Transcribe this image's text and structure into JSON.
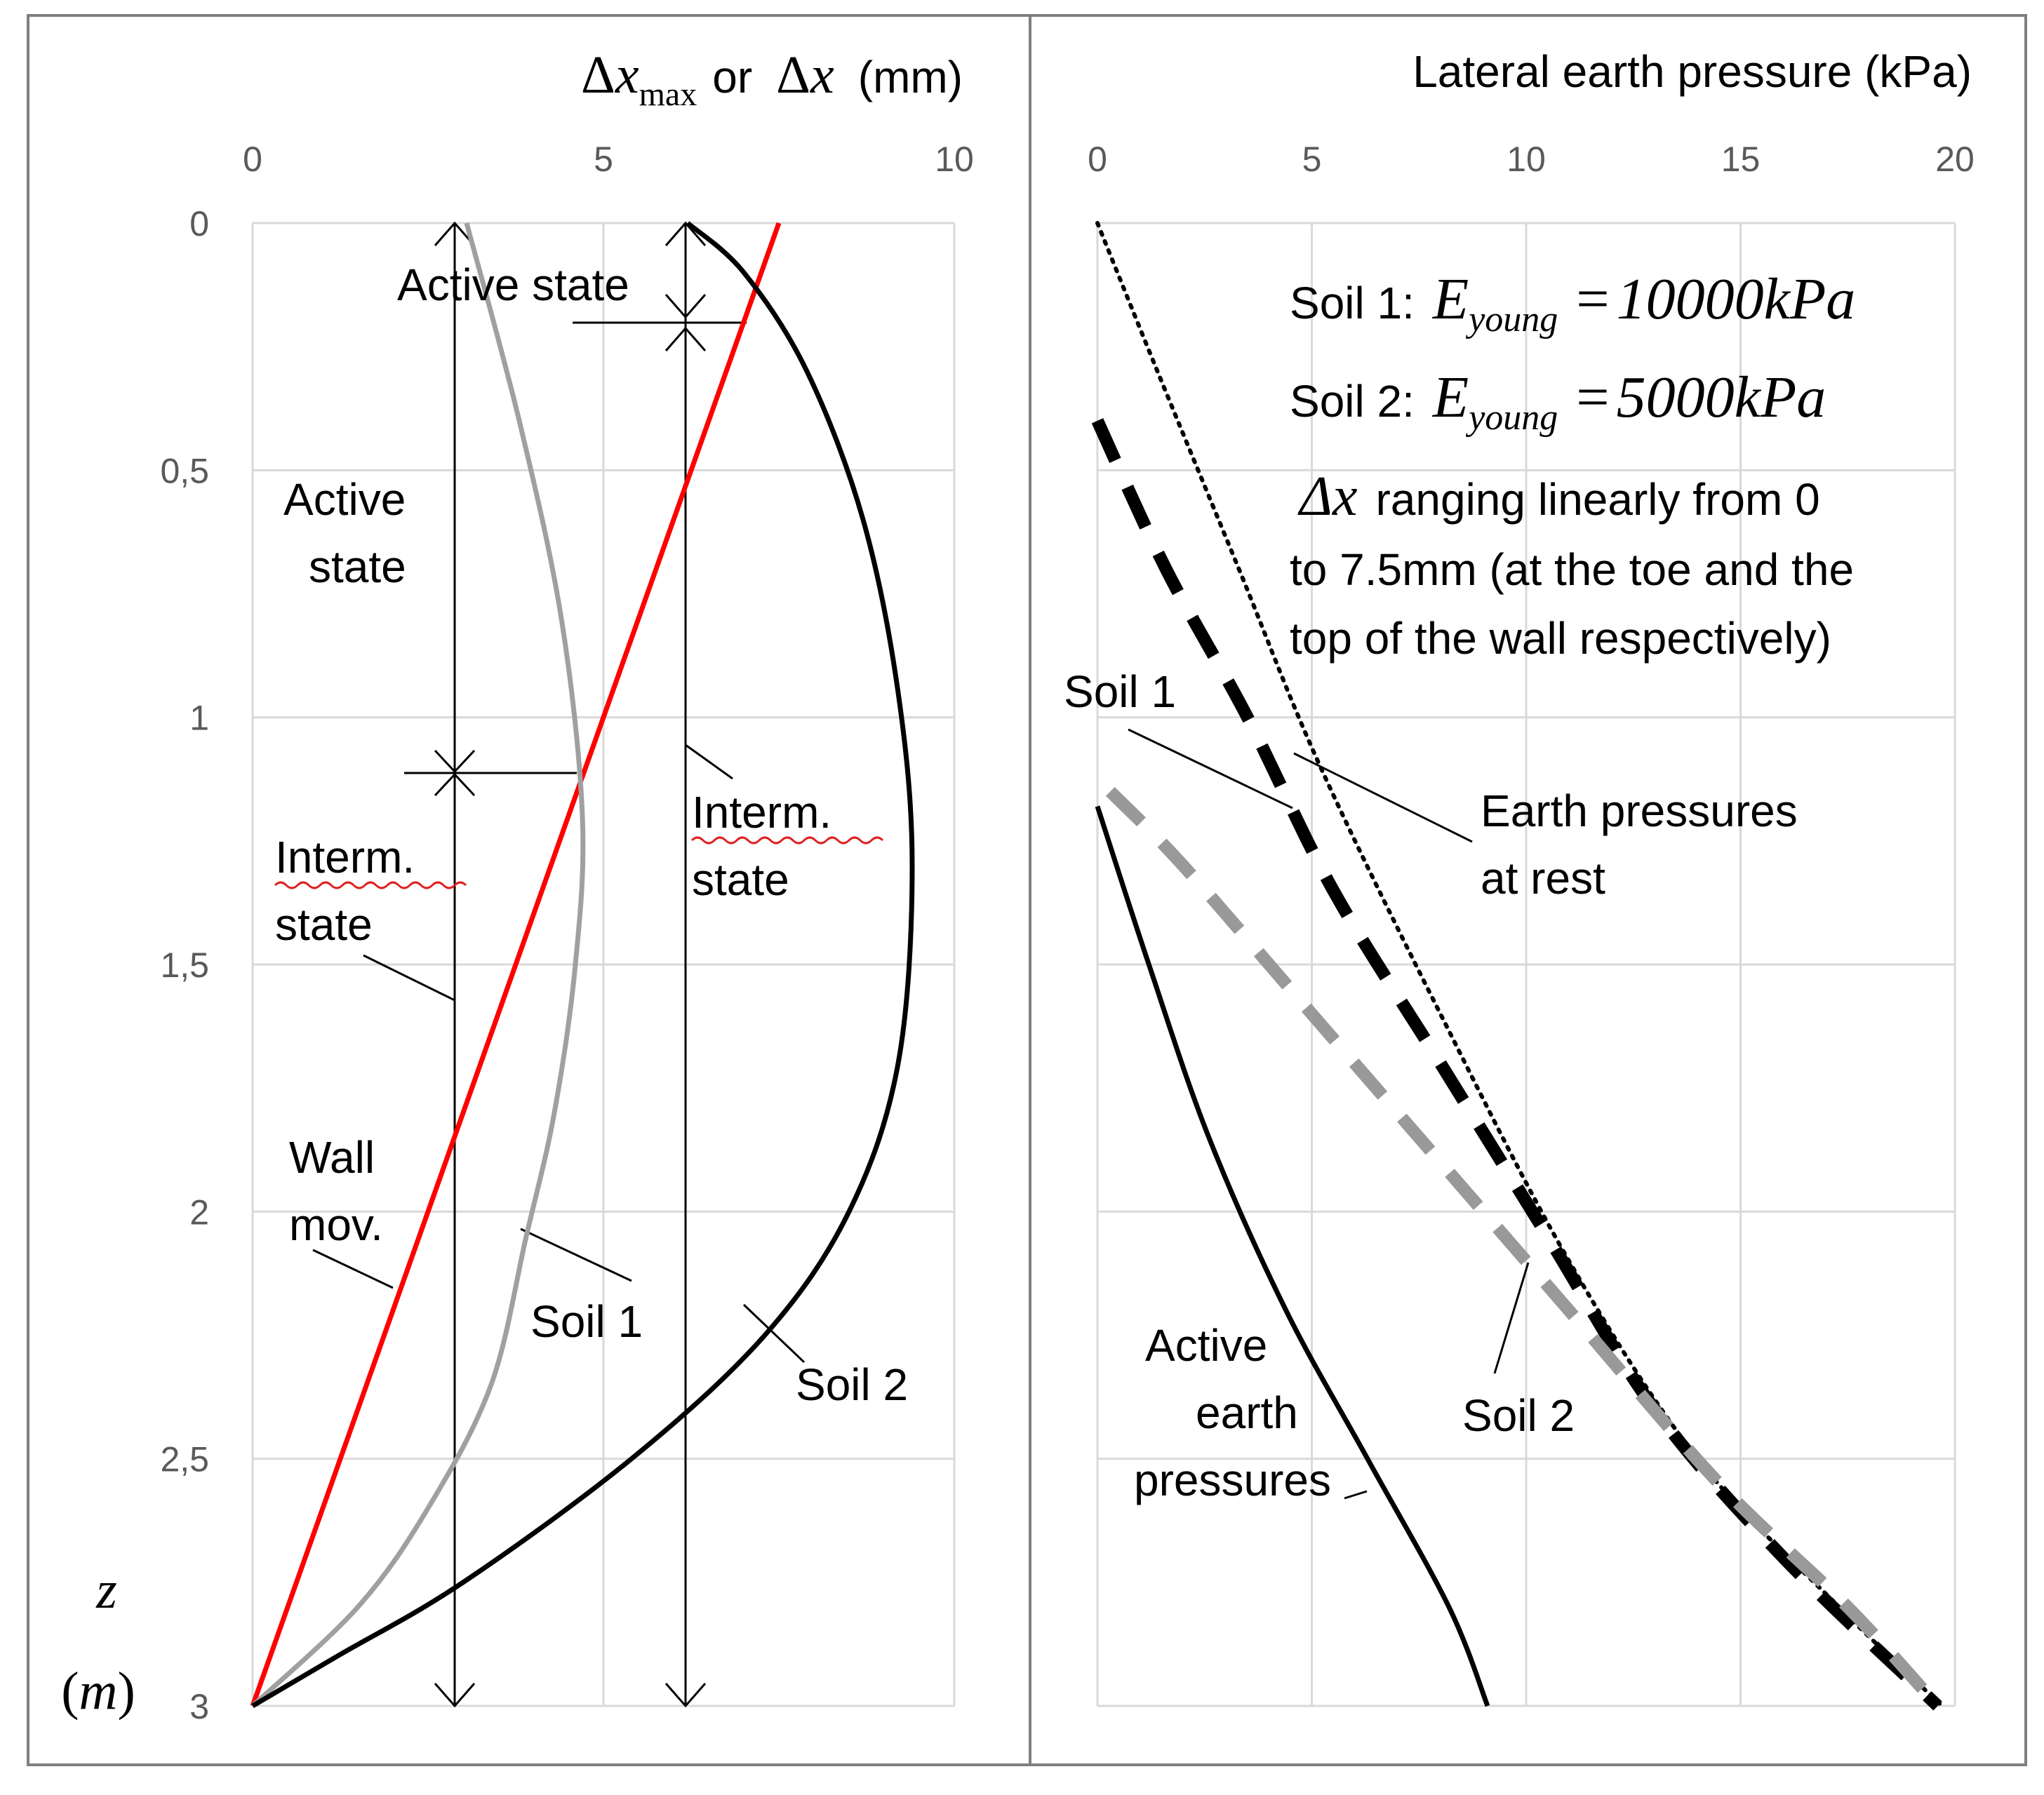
{
  "chart_data": [
    {
      "type": "line",
      "title": "",
      "xlabel": {
        "prefix": "Δ",
        "var": "x",
        "sub": "max",
        "middle": "or",
        "suffix": "(mm)"
      },
      "ylabel": {
        "var": "z",
        "unit": "m"
      },
      "xlim": [
        0,
        10
      ],
      "ylim": [
        0,
        3
      ],
      "y_inverted": true,
      "grid": true,
      "xticks": [
        0,
        5,
        10
      ],
      "yticks": [
        0,
        0.5,
        1,
        1.5,
        2,
        2.5,
        3
      ],
      "xtick_labels": [
        "0",
        "5",
        "10"
      ],
      "ytick_labels": [
        "0",
        "0,5",
        "1",
        "1,5",
        "2",
        "2,5",
        "3"
      ],
      "series": [
        {
          "name": "Wall mov.",
          "color": "#ff0000",
          "style": "solid",
          "points": [
            [
              7.5,
              0
            ],
            [
              0,
              3
            ]
          ]
        },
        {
          "name": "Soil 1",
          "color": "#a0a0a0",
          "style": "solid",
          "points": [
            [
              3.05,
              0
            ],
            [
              3.8,
              0.4
            ],
            [
              4.4,
              0.8
            ],
            [
              4.7,
              1.2
            ],
            [
              4.6,
              1.5
            ],
            [
              4.3,
              1.8
            ],
            [
              3.9,
              2.05
            ],
            [
              3.4,
              2.35
            ],
            [
              2.5,
              2.6
            ],
            [
              1.5,
              2.8
            ],
            [
              0,
              3
            ]
          ]
        },
        {
          "name": "Soil 2",
          "color": "#000000",
          "style": "solid",
          "points": [
            [
              6.2,
              0
            ],
            [
              7.0,
              0.1
            ],
            [
              7.9,
              0.3
            ],
            [
              8.7,
              0.6
            ],
            [
              9.2,
              0.95
            ],
            [
              9.4,
              1.3
            ],
            [
              9.2,
              1.7
            ],
            [
              8.5,
              2.0
            ],
            [
              7.3,
              2.25
            ],
            [
              5.4,
              2.5
            ],
            [
              3.0,
              2.75
            ],
            [
              1.2,
              2.9
            ],
            [
              0,
              3
            ]
          ]
        }
      ],
      "annotations": [
        {
          "id": "active_top",
          "text": "Active state"
        },
        {
          "id": "active_left_1",
          "text": "Active"
        },
        {
          "id": "active_left_2",
          "text": "state"
        },
        {
          "id": "interm_left_1",
          "text": "Interm."
        },
        {
          "id": "interm_left_2",
          "text": "state"
        },
        {
          "id": "interm_right_1",
          "text": "Interm."
        },
        {
          "id": "interm_right_2",
          "text": "state"
        },
        {
          "id": "wall_1",
          "text": "Wall"
        },
        {
          "id": "wall_2",
          "text": "mov."
        },
        {
          "id": "soil1",
          "text": "Soil 1"
        },
        {
          "id": "soil2",
          "text": "Soil 2"
        }
      ],
      "state_markers": [
        {
          "x": 2.85,
          "z_start": 0,
          "z_boundary": 1.12,
          "z_end": 3
        },
        {
          "x": 6.2,
          "z_start": 0,
          "z_boundary": 0.2,
          "z_end": 3
        }
      ]
    },
    {
      "type": "line",
      "title": "",
      "xlabel": "Lateral earth pressure (kPa)",
      "ylabel": "",
      "xlim": [
        0,
        20
      ],
      "ylim": [
        0,
        3
      ],
      "y_inverted": true,
      "grid": true,
      "xticks": [
        0,
        5,
        10,
        15,
        20
      ],
      "xtick_labels": [
        "0",
        "5",
        "10",
        "15",
        "20"
      ],
      "series": [
        {
          "name": "Earth pressures at rest",
          "color": "#000000",
          "style": "dotted",
          "points": [
            [
              0,
              0
            ],
            [
              1.4,
              0.3
            ],
            [
              3.3,
              0.7
            ],
            [
              5.2,
              1.1
            ],
            [
              8.0,
              1.6
            ],
            [
              11.0,
              2.1
            ],
            [
              14.0,
              2.5
            ],
            [
              17.3,
              2.8
            ],
            [
              19.7,
              3.0
            ]
          ]
        },
        {
          "name": "Soil 1",
          "color": "#000000",
          "style": "dashed-bold",
          "points": [
            [
              0,
              0.4
            ],
            [
              1.6,
              0.7
            ],
            [
              3.5,
              1.0
            ],
            [
              5.5,
              1.35
            ],
            [
              8.0,
              1.7
            ],
            [
              10.5,
              2.05
            ],
            [
              13.0,
              2.4
            ],
            [
              16.0,
              2.7
            ],
            [
              19.6,
              3.0
            ]
          ]
        },
        {
          "name": "Soil 2",
          "color": "#999999",
          "style": "dashed-bold",
          "points": [
            [
              0.3,
              1.15
            ],
            [
              2.0,
              1.3
            ],
            [
              5.0,
              1.6
            ],
            [
              8.0,
              1.9
            ],
            [
              11.0,
              2.2
            ],
            [
              14.5,
              2.55
            ],
            [
              17.5,
              2.8
            ],
            [
              19.6,
              3.0
            ]
          ]
        },
        {
          "name": "Active earth pressures",
          "color": "#000000",
          "style": "solid",
          "points": [
            [
              0,
              1.18
            ],
            [
              1.2,
              1.5
            ],
            [
              2.6,
              1.85
            ],
            [
              4.4,
              2.2
            ],
            [
              6.3,
              2.5
            ],
            [
              8.2,
              2.8
            ],
            [
              9.1,
              3.0
            ]
          ]
        }
      ],
      "annotations": [
        {
          "id": "soil1_label",
          "text": "Soil 1"
        },
        {
          "id": "rest_1",
          "text": "Earth pressures"
        },
        {
          "id": "rest_2",
          "text": "at rest"
        },
        {
          "id": "soil2_label",
          "text": "Soil 2"
        },
        {
          "id": "active_1",
          "text": "Active"
        },
        {
          "id": "active_2",
          "text": "earth"
        },
        {
          "id": "active_3",
          "text": "pressures"
        }
      ],
      "info_box": {
        "soil1_prefix": "Soil 1:",
        "soil1_E": "10000kPa",
        "soil2_prefix": "Soil 2:",
        "soil2_E": "5000kPa",
        "E_symbol": "E",
        "E_sub": "young",
        "eq": "=",
        "dx_symbol": "Δx",
        "line1": "ranging linearly from 0",
        "line2": "to 7.5mm (at the toe and the",
        "line3": "top of the wall respectively)"
      }
    }
  ]
}
